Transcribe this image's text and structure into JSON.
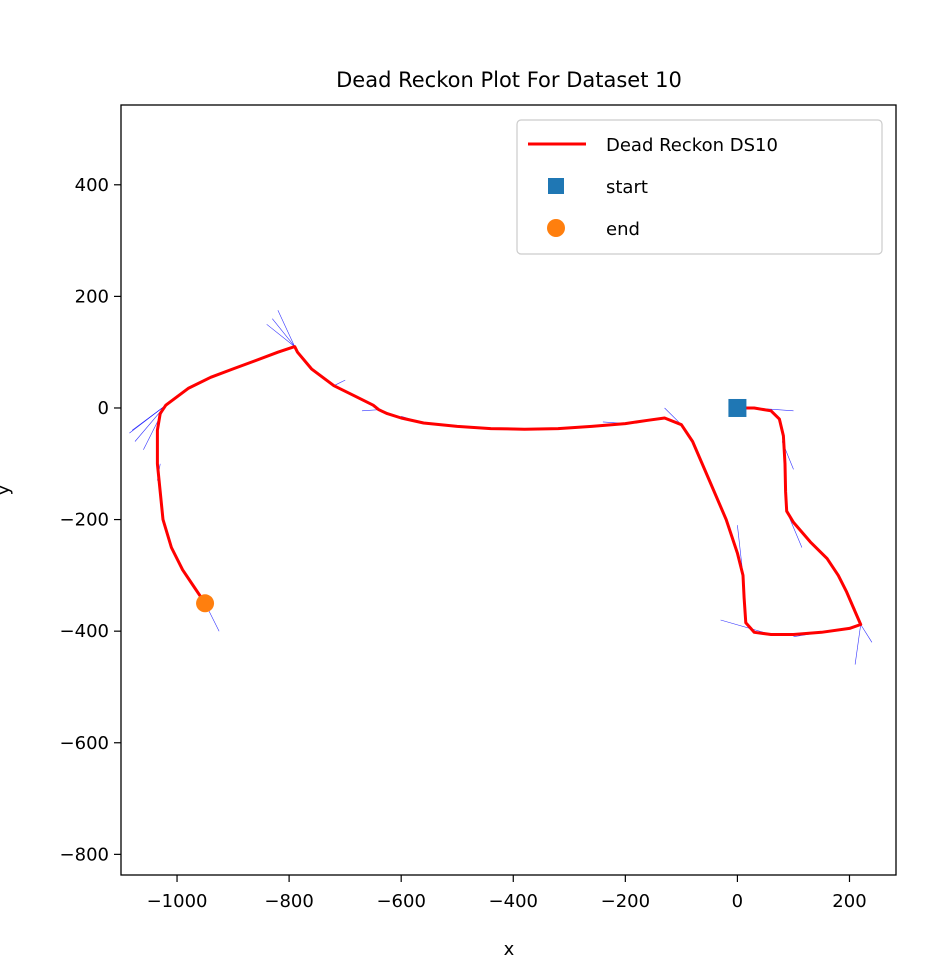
{
  "chart_data": {
    "type": "line",
    "title": "Dead Reckon Plot For Dataset 10",
    "xlabel": "x",
    "ylabel": "y",
    "xlim": [
      -1100,
      283
    ],
    "ylim": [
      -837,
      543
    ],
    "xticks": [
      -1000,
      -800,
      -600,
      -400,
      -200,
      0,
      200
    ],
    "yticks": [
      400,
      200,
      0,
      -200,
      -400,
      -600,
      -800
    ],
    "xtick_labels": [
      "−1000",
      "−800",
      "−600",
      "−400",
      "−200",
      "0",
      "200"
    ],
    "ytick_labels": [
      "400",
      "200",
      "0",
      "−200",
      "−400",
      "−600",
      "−800"
    ],
    "grid": false,
    "legend_position": "top-right",
    "series": [
      {
        "name": "Dead Reckon DS10",
        "kind": "line",
        "color": "#ff0000",
        "points": [
          [
            0,
            0
          ],
          [
            30,
            0
          ],
          [
            60,
            -5
          ],
          [
            75,
            -20
          ],
          [
            82,
            -50
          ],
          [
            85,
            -100
          ],
          [
            86,
            -150
          ],
          [
            88,
            -185
          ],
          [
            100,
            -205
          ],
          [
            130,
            -240
          ],
          [
            160,
            -270
          ],
          [
            180,
            -300
          ],
          [
            195,
            -330
          ],
          [
            210,
            -365
          ],
          [
            220,
            -388
          ],
          [
            200,
            -395
          ],
          [
            150,
            -402
          ],
          [
            100,
            -406
          ],
          [
            60,
            -406
          ],
          [
            30,
            -402
          ],
          [
            15,
            -385
          ],
          [
            12,
            -340
          ],
          [
            10,
            -300
          ],
          [
            0,
            -260
          ],
          [
            -20,
            -200
          ],
          [
            -50,
            -130
          ],
          [
            -80,
            -60
          ],
          [
            -100,
            -30
          ],
          [
            -130,
            -18
          ],
          [
            -160,
            -22
          ],
          [
            -200,
            -28
          ],
          [
            -260,
            -33
          ],
          [
            -320,
            -37
          ],
          [
            -380,
            -38
          ],
          [
            -440,
            -37
          ],
          [
            -500,
            -33
          ],
          [
            -560,
            -27
          ],
          [
            -600,
            -18
          ],
          [
            -625,
            -10
          ],
          [
            -640,
            -3
          ],
          [
            -650,
            5
          ],
          [
            -680,
            20
          ],
          [
            -720,
            40
          ],
          [
            -760,
            70
          ],
          [
            -785,
            100
          ],
          [
            -790,
            110
          ],
          [
            -820,
            100
          ],
          [
            -860,
            85
          ],
          [
            -900,
            70
          ],
          [
            -940,
            55
          ],
          [
            -980,
            35
          ],
          [
            -1020,
            5
          ],
          [
            -1030,
            -10
          ],
          [
            -1035,
            -40
          ],
          [
            -1035,
            -100
          ],
          [
            -1030,
            -150
          ],
          [
            -1025,
            -200
          ],
          [
            -1010,
            -250
          ],
          [
            -990,
            -290
          ],
          [
            -970,
            -320
          ],
          [
            -950,
            -350
          ]
        ]
      },
      {
        "name": "start",
        "kind": "marker",
        "shape": "square",
        "color": "#1f77b4",
        "points": [
          [
            0,
            0
          ]
        ]
      },
      {
        "name": "end",
        "kind": "marker",
        "shape": "circle",
        "color": "#ff7f0e",
        "points": [
          [
            -950,
            -350
          ]
        ]
      }
    ],
    "heading_vectors": {
      "color": "#0000ff",
      "segments": [
        [
          [
            0,
            0
          ],
          [
            50,
            -2
          ]
        ],
        [
          [
            30,
            0
          ],
          [
            100,
            -5
          ]
        ],
        [
          [
            80,
            -60
          ],
          [
            100,
            -110
          ]
        ],
        [
          [
            88,
            -185
          ],
          [
            115,
            -250
          ]
        ],
        [
          [
            180,
            -300
          ],
          [
            210,
            -360
          ]
        ],
        [
          [
            220,
            -388
          ],
          [
            240,
            -420
          ]
        ],
        [
          [
            220,
            -388
          ],
          [
            210,
            -460
          ]
        ],
        [
          [
            150,
            -402
          ],
          [
            100,
            -410
          ]
        ],
        [
          [
            60,
            -406
          ],
          [
            -30,
            -380
          ]
        ],
        [
          [
            10,
            -300
          ],
          [
            0,
            -210
          ]
        ],
        [
          [
            -100,
            -30
          ],
          [
            -130,
            0
          ]
        ],
        [
          [
            -200,
            -28
          ],
          [
            -240,
            -25
          ]
        ],
        [
          [
            -560,
            -27
          ],
          [
            -600,
            -15
          ]
        ],
        [
          [
            -640,
            -3
          ],
          [
            -670,
            -5
          ]
        ],
        [
          [
            -720,
            40
          ],
          [
            -700,
            50
          ]
        ],
        [
          [
            -790,
            110
          ],
          [
            -830,
            160
          ]
        ],
        [
          [
            -790,
            110
          ],
          [
            -820,
            175
          ]
        ],
        [
          [
            -790,
            110
          ],
          [
            -840,
            150
          ]
        ],
        [
          [
            -1020,
            5
          ],
          [
            -1080,
            -40
          ]
        ],
        [
          [
            -1020,
            5
          ],
          [
            -1085,
            -45
          ]
        ],
        [
          [
            -1020,
            5
          ],
          [
            -1075,
            -60
          ]
        ],
        [
          [
            -1020,
            5
          ],
          [
            -1060,
            -75
          ]
        ],
        [
          [
            -1030,
            -100
          ],
          [
            -1035,
            -130
          ]
        ],
        [
          [
            -1010,
            -250
          ],
          [
            -1020,
            -220
          ]
        ],
        [
          [
            -950,
            -350
          ],
          [
            -925,
            -400
          ]
        ]
      ]
    }
  }
}
